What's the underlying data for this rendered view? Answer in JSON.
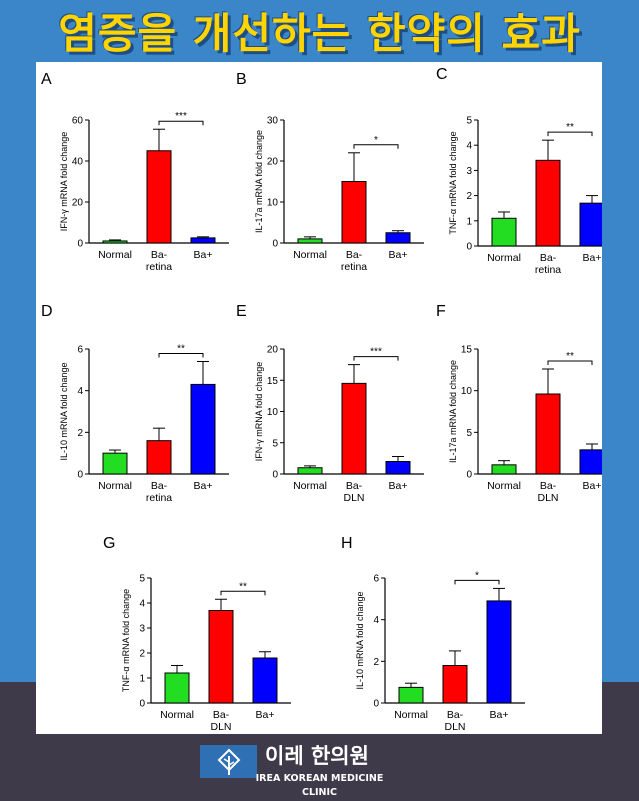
{
  "page": {
    "title": "염증을 개선하는 한약의 효과",
    "clinic_name_ko": "이레 한의원",
    "clinic_name_en_line1": "IREA KOREAN MEDICINE",
    "clinic_name_en_line2": "CLINIC",
    "logo_icon": "leaf-icon"
  },
  "colors": {
    "background": "#3a86c8",
    "title": "#ffd400",
    "bottom_band": "#3e3a4a",
    "normal": "#22dd22",
    "ba_disease": "#ff0000",
    "ba_plus": "#0000ff"
  },
  "chart_data": [
    {
      "panel_label": "A",
      "type": "bar",
      "ylabel": "IFN-γ mRNA fold change",
      "ylim": [
        0,
        60
      ],
      "yticks": [
        "0",
        "20",
        "40",
        "60"
      ],
      "categories": [
        "Normal",
        "Ba-retina",
        "Ba+"
      ],
      "category_lines": [
        [
          "Normal"
        ],
        [
          "Ba-",
          "retina"
        ],
        [
          "Ba+"
        ]
      ],
      "values": [
        1,
        45,
        2.5
      ],
      "errors": [
        0.5,
        10.5,
        0.5
      ],
      "significance": {
        "from": 1,
        "to": 2,
        "label": "***"
      }
    },
    {
      "panel_label": "B",
      "type": "bar",
      "ylabel": "IL-17a mRNA fold change",
      "ylim": [
        0,
        30
      ],
      "yticks": [
        "0",
        "10",
        "20",
        "30"
      ],
      "categories": [
        "Normal",
        "Ba-retina",
        "Ba+"
      ],
      "category_lines": [
        [
          "Normal"
        ],
        [
          "Ba-",
          "retina"
        ],
        [
          "Ba+"
        ]
      ],
      "values": [
        1,
        15,
        2.5
      ],
      "errors": [
        0.5,
        7,
        0.5
      ],
      "significance": {
        "from": 1,
        "to": 2,
        "label": "*"
      }
    },
    {
      "panel_label": "C",
      "type": "bar",
      "ylabel": "TNF-α mRNA fold change",
      "ylim": [
        0,
        5
      ],
      "yticks": [
        "0",
        "1",
        "2",
        "3",
        "4",
        "5"
      ],
      "categories": [
        "Normal",
        "Ba-retina",
        "Ba+"
      ],
      "category_lines": [
        [
          "Normal"
        ],
        [
          "Ba-",
          "retina"
        ],
        [
          "Ba+"
        ]
      ],
      "values": [
        1.1,
        3.4,
        1.7
      ],
      "errors": [
        0.25,
        0.8,
        0.3
      ],
      "significance": {
        "from": 1,
        "to": 2,
        "label": "**"
      }
    },
    {
      "panel_label": "D",
      "type": "bar",
      "ylabel": "IL-10 mRNA fold change",
      "ylim": [
        0,
        6
      ],
      "yticks": [
        "0",
        "2",
        "4",
        "6"
      ],
      "categories": [
        "Normal",
        "Ba-retina",
        "Ba+"
      ],
      "category_lines": [
        [
          "Normal"
        ],
        [
          "Ba-",
          "retina"
        ],
        [
          "Ba+"
        ]
      ],
      "values": [
        1,
        1.6,
        4.3
      ],
      "errors": [
        0.15,
        0.6,
        1.1
      ],
      "significance": {
        "from": 1,
        "to": 2,
        "label": "**"
      }
    },
    {
      "panel_label": "E",
      "type": "bar",
      "ylabel": "IFN-γ mRNA fold change",
      "ylim": [
        0,
        20
      ],
      "yticks": [
        "0",
        "5",
        "10",
        "15",
        "20"
      ],
      "categories": [
        "Normal",
        "Ba-DLN",
        "Ba+"
      ],
      "category_lines": [
        [
          "Normal"
        ],
        [
          "Ba-",
          "DLN"
        ],
        [
          "Ba+"
        ]
      ],
      "values": [
        1,
        14.5,
        2
      ],
      "errors": [
        0.3,
        3,
        0.8
      ],
      "significance": {
        "from": 1,
        "to": 2,
        "label": "***"
      }
    },
    {
      "panel_label": "F",
      "type": "bar",
      "ylabel": "IL-17a mRNA fold change",
      "ylim": [
        0,
        15
      ],
      "yticks": [
        "0",
        "5",
        "10",
        "15"
      ],
      "categories": [
        "Normal",
        "Ba-DLN",
        "Ba+"
      ],
      "category_lines": [
        [
          "Normal"
        ],
        [
          "Ba-",
          "DLN"
        ],
        [
          "Ba+"
        ]
      ],
      "values": [
        1.1,
        9.6,
        2.9
      ],
      "errors": [
        0.5,
        3,
        0.7
      ],
      "significance": {
        "from": 1,
        "to": 2,
        "label": "**"
      }
    },
    {
      "panel_label": "G",
      "type": "bar",
      "ylabel": "TNF-α mRNA fold change",
      "ylim": [
        0,
        5
      ],
      "yticks": [
        "0",
        "1",
        "2",
        "3",
        "4",
        "5"
      ],
      "categories": [
        "Normal",
        "Ba-DLN",
        "Ba+"
      ],
      "category_lines": [
        [
          "Normal"
        ],
        [
          "Ba-",
          "DLN"
        ],
        [
          "Ba+"
        ]
      ],
      "values": [
        1.2,
        3.7,
        1.8
      ],
      "errors": [
        0.3,
        0.45,
        0.25
      ],
      "significance": {
        "from": 1,
        "to": 2,
        "label": "**"
      }
    },
    {
      "panel_label": "H",
      "type": "bar",
      "ylabel": "IL-10 mRNA fold change",
      "ylim": [
        0,
        6
      ],
      "yticks": [
        "0",
        "2",
        "4",
        "6"
      ],
      "categories": [
        "Normal",
        "Ba-DLN",
        "Ba+"
      ],
      "category_lines": [
        [
          "Normal"
        ],
        [
          "Ba-",
          "DLN"
        ],
        [
          "Ba+"
        ]
      ],
      "values": [
        0.75,
        1.8,
        4.9
      ],
      "errors": [
        0.2,
        0.7,
        0.6
      ],
      "significance": {
        "from": 1,
        "to": 2,
        "label": "*"
      }
    }
  ]
}
